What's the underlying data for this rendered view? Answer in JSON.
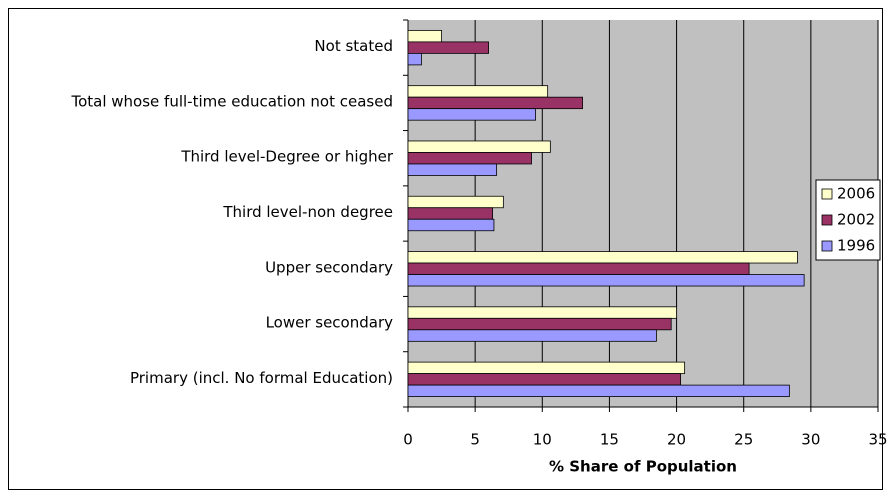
{
  "chart_data": {
    "type": "bar",
    "orientation": "horizontal",
    "xlabel": "% Share of Population",
    "categories": [
      "Not stated",
      "Total whose full-time education not ceased",
      "Third level-Degree or higher",
      "Third level-non degree",
      "Upper secondary",
      "Lower secondary",
      "Primary (incl. No formal Education)"
    ],
    "series": [
      {
        "name": "2006",
        "color": "#ffffcc",
        "values": [
          2.5,
          10.4,
          10.6,
          7.1,
          29.0,
          20.0,
          20.6
        ]
      },
      {
        "name": "2002",
        "color": "#993366",
        "values": [
          6.0,
          13.0,
          9.2,
          6.3,
          25.4,
          19.6,
          20.3
        ]
      },
      {
        "name": "1996",
        "color": "#9999ff",
        "values": [
          1.0,
          9.5,
          6.6,
          6.4,
          29.5,
          18.5,
          28.4
        ]
      }
    ],
    "xlim": [
      0,
      35
    ],
    "xticks": [
      0,
      5,
      10,
      15,
      20,
      25,
      30,
      35
    ],
    "grid": true,
    "legend": "right"
  }
}
